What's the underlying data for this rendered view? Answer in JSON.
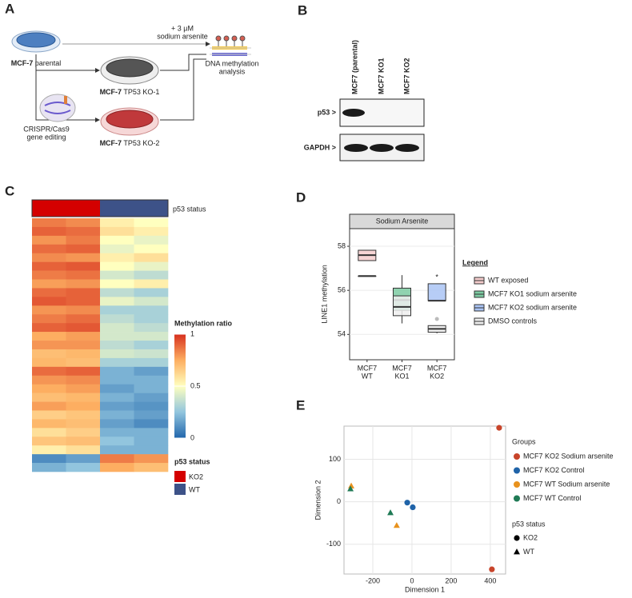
{
  "panel_labels": [
    "A",
    "B",
    "C",
    "D",
    "E"
  ],
  "diagram": {
    "treatment": [
      "+ 3 µM",
      "sodium arsenite"
    ],
    "parental": {
      "cell": "MCF-7",
      "label": "parental"
    },
    "ko1": {
      "cell": "MCF-7",
      "label": "TP53 KO-1"
    },
    "ko2": {
      "cell": "MCF-7",
      "label": "TP53 KO-2"
    },
    "editing": [
      "CRISPR/Cas9",
      "gene editing"
    ],
    "analysis": [
      "DNA methylation",
      "analysis"
    ]
  },
  "blot": {
    "lanes": [
      "MCF7 (parental)",
      "MCF7 KO1",
      "MCF7 KO2"
    ],
    "rows": [
      "p53 >",
      "GAPDH >"
    ]
  },
  "chart_data": [
    {
      "type": "heatmap",
      "annotation_label": "p53 status",
      "column_groups": [
        "KO2",
        "KO2",
        "WT",
        "WT"
      ],
      "values": [
        [
          0.85,
          0.82,
          0.55,
          0.5
        ],
        [
          0.9,
          0.88,
          0.6,
          0.55
        ],
        [
          0.8,
          0.85,
          0.5,
          0.45
        ],
        [
          0.88,
          0.9,
          0.45,
          0.5
        ],
        [
          0.82,
          0.8,
          0.55,
          0.6
        ],
        [
          0.9,
          0.92,
          0.5,
          0.45
        ],
        [
          0.85,
          0.87,
          0.4,
          0.35
        ],
        [
          0.78,
          0.8,
          0.5,
          0.55
        ],
        [
          0.88,
          0.9,
          0.35,
          0.3
        ],
        [
          0.92,
          0.9,
          0.45,
          0.4
        ],
        [
          0.8,
          0.82,
          0.3,
          0.3
        ],
        [
          0.85,
          0.88,
          0.35,
          0.3
        ],
        [
          0.9,
          0.92,
          0.4,
          0.35
        ],
        [
          0.75,
          0.78,
          0.4,
          0.4
        ],
        [
          0.8,
          0.8,
          0.35,
          0.3
        ],
        [
          0.7,
          0.72,
          0.4,
          0.38
        ],
        [
          0.72,
          0.7,
          0.3,
          0.3
        ],
        [
          0.88,
          0.9,
          0.2,
          0.15
        ],
        [
          0.8,
          0.82,
          0.2,
          0.2
        ],
        [
          0.75,
          0.78,
          0.15,
          0.2
        ],
        [
          0.7,
          0.72,
          0.2,
          0.15
        ],
        [
          0.78,
          0.75,
          0.15,
          0.12
        ],
        [
          0.65,
          0.68,
          0.2,
          0.15
        ],
        [
          0.72,
          0.7,
          0.15,
          0.1
        ],
        [
          0.6,
          0.65,
          0.2,
          0.2
        ],
        [
          0.68,
          0.7,
          0.25,
          0.2
        ],
        [
          0.55,
          0.6,
          0.2,
          0.2
        ],
        [
          0.1,
          0.15,
          0.85,
          0.8
        ],
        [
          0.2,
          0.25,
          0.75,
          0.7
        ]
      ],
      "colorscale": [
        "#2166ac",
        "#92c5de",
        "#ffffbf",
        "#fdae61",
        "#d7301f"
      ],
      "zlim": [
        0,
        1
      ],
      "zticks": [
        0,
        0.5,
        1
      ],
      "legend_title": "Methylation ratio",
      "group_legend": {
        "title": "p53 status",
        "items": [
          {
            "name": "KO2",
            "color": "#d40000"
          },
          {
            "name": "WT",
            "color": "#3d5288"
          }
        ]
      }
    },
    {
      "type": "box",
      "title": "Sodium Arsenite",
      "ylabel": "LINE1 methylation",
      "categories": [
        [
          "MCF7",
          "WT"
        ],
        [
          "MCF7",
          "KO1"
        ],
        [
          "MCF7",
          "KO2"
        ]
      ],
      "ylim": [
        52.85,
        58.8
      ],
      "yticks": [
        54,
        56,
        58
      ],
      "grid": true,
      "legend_title": "Legend",
      "series": [
        {
          "name": "WT exposed",
          "color": "#f4cccc",
          "values": [
            {
              "min": 57.35,
              "q1": 57.35,
              "median": 57.6,
              "q3": 57.82,
              "max": 57.82,
              "outliers": []
            },
            null,
            null
          ]
        },
        {
          "name": "MCF7 KO1 sodium arsenite",
          "color": "#7ccba2",
          "values": [
            null,
            {
              "min": 54.5,
              "q1": 55.09,
              "median": 55.56,
              "q3": 56.1,
              "max": 56.69,
              "outliers": []
            },
            null
          ]
        },
        {
          "name": "MCF7 KO2 sodium arsenite",
          "color": "#aac4f5",
          "values": [
            null,
            null,
            {
              "min": 55.53,
              "q1": 55.53,
              "median": 55.53,
              "q3": 56.3,
              "max": 56.3,
              "outliers": []
            }
          ]
        },
        {
          "name": "DMSO controls",
          "color": "#eeeeee",
          "values": [
            {
              "min": 56.65,
              "q1": 56.65,
              "median": 56.65,
              "q3": 56.65,
              "max": 56.65,
              "outliers": []
            },
            {
              "min": 54.85,
              "q1": 54.85,
              "median": 55.25,
              "q3": 55.75,
              "max": 55.75,
              "outliers": []
            },
            {
              "min": 54.05,
              "q1": 54.1,
              "median": 54.25,
              "q3": 54.4,
              "max": 54.4,
              "outliers": [
                54.7
              ]
            }
          ]
        }
      ],
      "annotations": [
        {
          "text": "*"
        }
      ]
    },
    {
      "type": "scatter",
      "xlabel": "Dimension 1",
      "ylabel": "Dimension 2",
      "xlim": [
        -347,
        478
      ],
      "ylim": [
        -170,
        178
      ],
      "xticks": [
        -200,
        0,
        200,
        400
      ],
      "yticks": [
        -100,
        0,
        100
      ],
      "grid": true,
      "legend_title": "Groups",
      "series": [
        {
          "name": "MCF7 KO2 Sodium arsenite",
          "color": "#c8442a",
          "marker": "circle",
          "x": [
            445,
            408
          ],
          "y": [
            174,
            -159
          ]
        },
        {
          "name": "MCF7 KO2 Control",
          "color": "#1f63a8",
          "marker": "circle",
          "x": [
            -24,
            4
          ],
          "y": [
            -2,
            -13
          ]
        },
        {
          "name": "MCF7 WT Sodium arsenite",
          "color": "#e8921e",
          "marker": "triangle",
          "x": [
            -310,
            -78
          ],
          "y": [
            37,
            -56
          ]
        },
        {
          "name": "MCF7 WT Control",
          "color": "#1f7a55",
          "marker": "triangle",
          "x": [
            -314,
            -110
          ],
          "y": [
            30,
            -26
          ]
        }
      ],
      "shape_legend": {
        "title": "p53 status",
        "items": [
          {
            "name": "KO2",
            "marker": "circle"
          },
          {
            "name": "WT",
            "marker": "triangle"
          }
        ]
      }
    }
  ]
}
